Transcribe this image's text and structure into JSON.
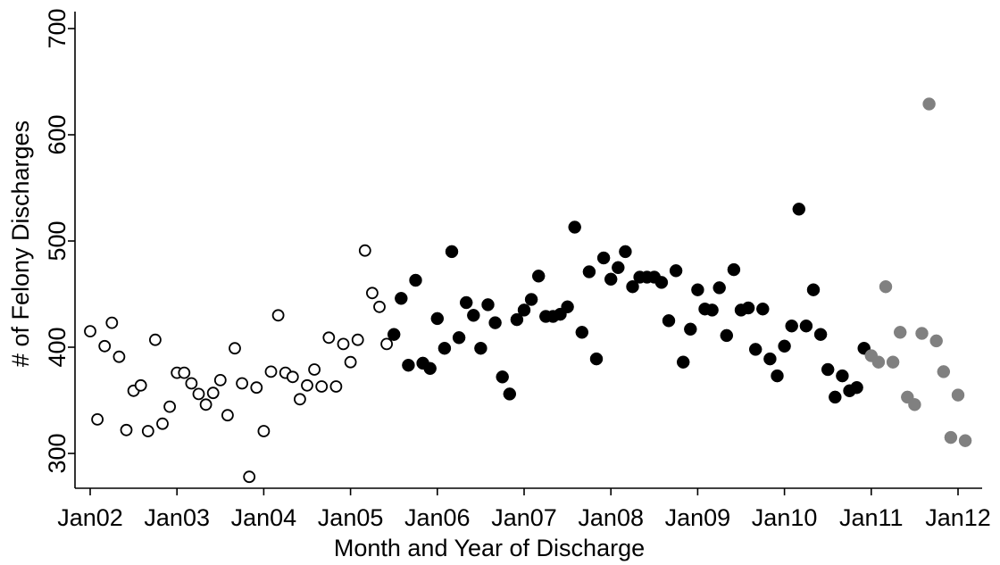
{
  "chart_data": {
    "type": "scatter",
    "title": "",
    "xlabel": "Month and Year of Discharge",
    "ylabel": "# of Felony Discharges",
    "xlim": [
      "2001-12",
      "2012-02"
    ],
    "ylim": [
      285,
      715
    ],
    "x_ticks": [
      "Jan02",
      "Jan03",
      "Jan04",
      "Jan05",
      "Jan06",
      "Jan07",
      "Jan08",
      "Jan09",
      "Jan10",
      "Jan11",
      "Jan12"
    ],
    "y_ticks": [
      "300",
      "400",
      "500",
      "600",
      "700"
    ],
    "grid": false,
    "legend": "none",
    "series": [
      {
        "style": "hollow",
        "color": "#000000",
        "start": "2002-01",
        "values": [
          415,
          332,
          401,
          423,
          391,
          322,
          359,
          364,
          321,
          407,
          328,
          344,
          376,
          376,
          366,
          356,
          346,
          357,
          369,
          336,
          399,
          366,
          278,
          362,
          321,
          377,
          430,
          376,
          372,
          351,
          364,
          379,
          363,
          409,
          363,
          403,
          386,
          407,
          491,
          451,
          438,
          403
        ]
      },
      {
        "style": "filled",
        "color": "#000000",
        "start": "2005-07",
        "values": [
          412,
          446,
          383,
          463,
          385,
          380,
          427,
          399,
          490,
          409,
          442,
          430,
          399,
          440,
          423,
          372,
          356,
          426,
          435,
          445,
          467,
          429,
          429,
          431,
          438,
          513,
          414,
          471,
          389,
          484,
          464,
          475,
          490,
          457,
          466,
          466,
          466,
          461,
          425,
          472,
          386,
          417,
          454,
          436,
          435,
          456,
          411,
          473,
          435,
          437,
          398,
          436,
          389,
          373,
          401,
          420,
          530,
          420,
          454,
          412,
          379,
          353,
          373,
          359,
          362,
          399
        ]
      },
      {
        "style": "filled",
        "color": "#808080",
        "start": "2011-01",
        "values": [
          392,
          386,
          457,
          386,
          414,
          353,
          346,
          413,
          629,
          406,
          377,
          315,
          355,
          312
        ]
      }
    ]
  }
}
